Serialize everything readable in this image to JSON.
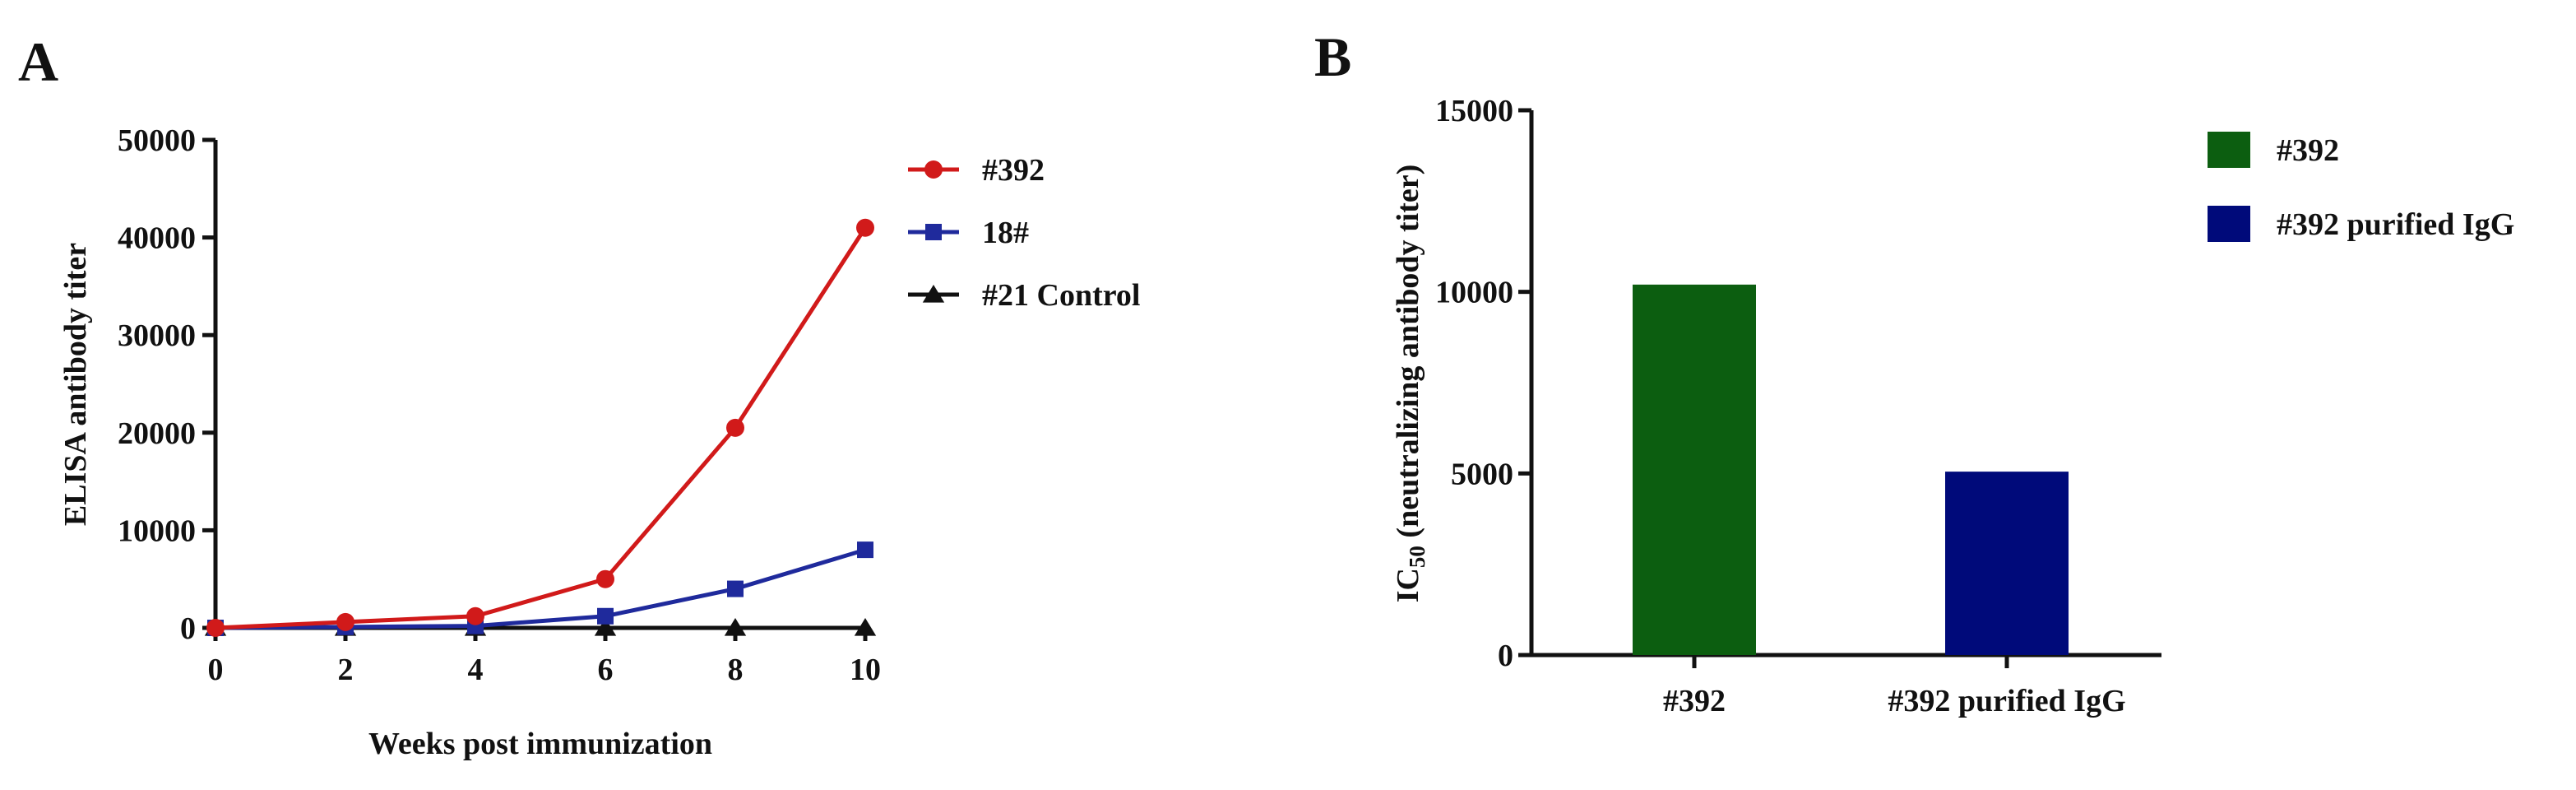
{
  "figure": {
    "panels": [
      "A",
      "B"
    ]
  },
  "chart_data": [
    {
      "type": "line",
      "panel": "A",
      "title": "",
      "xlabel": "Weeks post immunization",
      "ylabel": "ELISA antibody titer",
      "x": [
        0,
        2,
        4,
        6,
        8,
        10
      ],
      "xlim": [
        0,
        10
      ],
      "ylim": [
        0,
        50000
      ],
      "xticks": [
        "0",
        "2",
        "4",
        "6",
        "8",
        "10"
      ],
      "yticks": [
        "0",
        "10000",
        "20000",
        "30000",
        "40000",
        "50000"
      ],
      "grid": false,
      "legend_position": "top-right",
      "series": [
        {
          "name": "#392",
          "marker": "circle",
          "color": "#d11a1a",
          "values": [
            0,
            600,
            1200,
            5000,
            20500,
            41000
          ]
        },
        {
          "name": "18#",
          "marker": "square",
          "color": "#1f2a9c",
          "values": [
            0,
            100,
            200,
            1200,
            4000,
            8000
          ]
        },
        {
          "name": "#21 Control",
          "marker": "triangle",
          "color": "#111111",
          "values": [
            0,
            0,
            0,
            0,
            0,
            0
          ]
        }
      ]
    },
    {
      "type": "bar",
      "panel": "B",
      "title": "",
      "xlabel": "",
      "ylabel_main": "IC",
      "ylabel_subscript": "50",
      "ylabel_rest": " (neutralizing antibody titer)",
      "categories": [
        "#392",
        "#392 purified IgG"
      ],
      "values": [
        10200,
        5050
      ],
      "colors": [
        "#0c5e10",
        "#000a7a"
      ],
      "ylim": [
        0,
        15000
      ],
      "yticks": [
        "0",
        "5000",
        "10000",
        "15000"
      ],
      "grid": false,
      "legend_position": "top-right",
      "legend": [
        {
          "name": "#392",
          "color": "#0c5e10"
        },
        {
          "name": "#392 purified IgG",
          "color": "#000a7a"
        }
      ]
    }
  ]
}
